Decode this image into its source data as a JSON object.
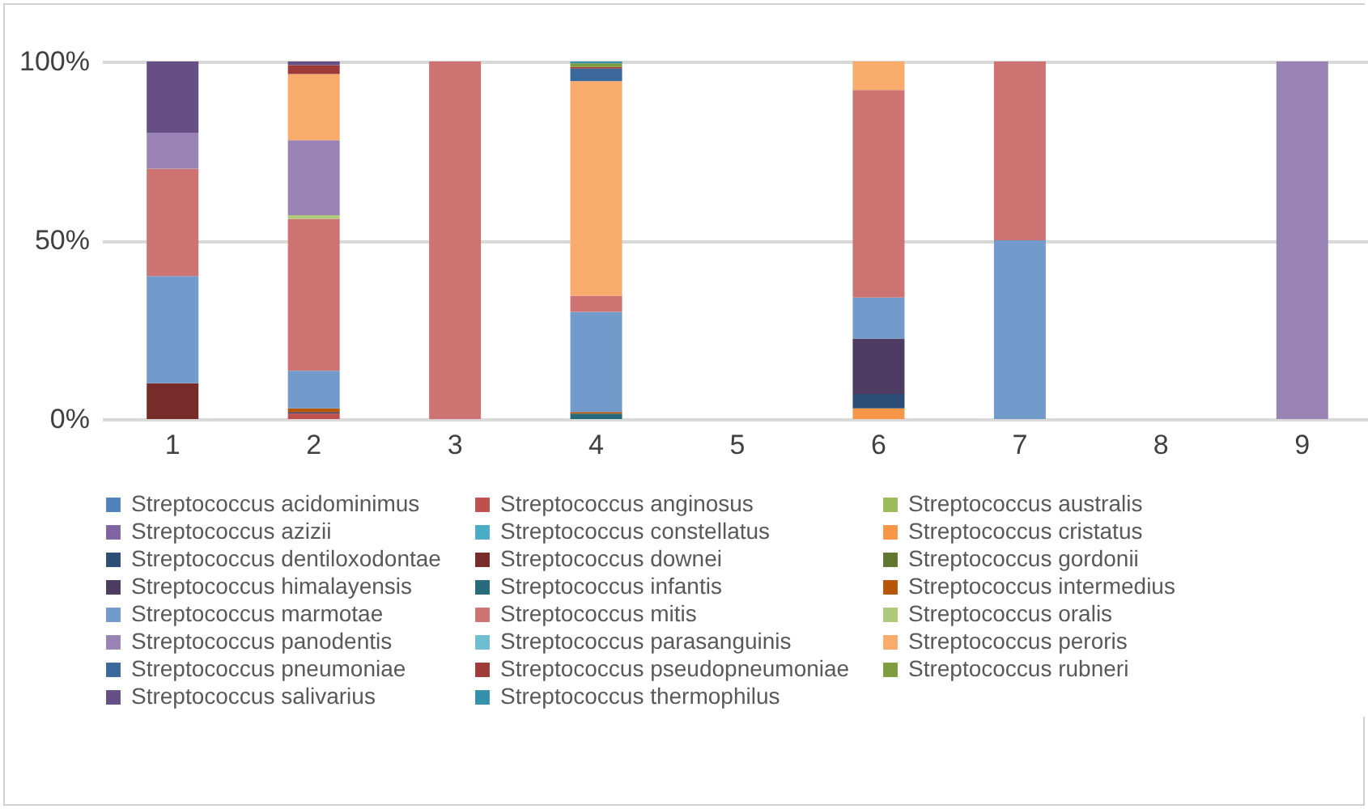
{
  "chart_data": {
    "type": "bar",
    "stacked": true,
    "categories": [
      "1",
      "2",
      "3",
      "4",
      "5",
      "6",
      "7",
      "8",
      "9"
    ],
    "ylim": [
      0,
      100
    ],
    "yticks": [
      {
        "value": 0,
        "label": "0%"
      },
      {
        "value": 50,
        "label": "50%"
      },
      {
        "value": 100,
        "label": "100%"
      }
    ],
    "grid": "y",
    "legend": "bottom",
    "series": [
      {
        "name": "Streptococcus acidominimus",
        "color": "#4f81bd",
        "values": [
          null,
          null,
          null,
          null,
          null,
          null,
          null,
          null,
          null
        ]
      },
      {
        "name": "Streptococcus anginosus",
        "color": "#c0504d",
        "values": [
          null,
          1.5,
          null,
          null,
          null,
          null,
          null,
          null,
          null
        ]
      },
      {
        "name": "Streptococcus australis",
        "color": "#9bbb59",
        "values": [
          null,
          null,
          null,
          null,
          null,
          null,
          null,
          null,
          null
        ]
      },
      {
        "name": "Streptococcus azizii",
        "color": "#8064a2",
        "values": [
          null,
          null,
          null,
          null,
          null,
          null,
          null,
          null,
          null
        ]
      },
      {
        "name": "Streptococcus constellatus",
        "color": "#4bacc6",
        "values": [
          null,
          null,
          null,
          null,
          null,
          null,
          null,
          null,
          null
        ]
      },
      {
        "name": "Streptococcus cristatus",
        "color": "#f79646",
        "values": [
          null,
          null,
          null,
          null,
          null,
          3,
          null,
          null,
          null
        ]
      },
      {
        "name": "Streptococcus dentiloxodontae",
        "color": "#2c4d75",
        "values": [
          null,
          null,
          null,
          null,
          null,
          4,
          null,
          null,
          null
        ]
      },
      {
        "name": "Streptococcus downei",
        "color": "#772c2a",
        "values": [
          10,
          null,
          null,
          null,
          null,
          null,
          null,
          null,
          null
        ]
      },
      {
        "name": "Streptococcus gordonii",
        "color": "#5f7530",
        "values": [
          null,
          null,
          null,
          null,
          null,
          null,
          null,
          null,
          null
        ]
      },
      {
        "name": "Streptococcus himalayensis",
        "color": "#4d3b62",
        "values": [
          null,
          0.5,
          null,
          null,
          null,
          15.5,
          null,
          null,
          null
        ]
      },
      {
        "name": "Streptococcus infantis",
        "color": "#276a7c",
        "values": [
          null,
          null,
          null,
          1.5,
          null,
          null,
          null,
          null,
          null
        ]
      },
      {
        "name": "Streptococcus intermedius",
        "color": "#b65708",
        "values": [
          null,
          1,
          null,
          0.5,
          null,
          null,
          null,
          null,
          null
        ]
      },
      {
        "name": "Streptococcus marmotae",
        "color": "#729aca",
        "values": [
          30,
          10.5,
          null,
          28,
          null,
          11.5,
          50,
          null,
          null
        ]
      },
      {
        "name": "Streptococcus mitis",
        "color": "#cd7371",
        "values": [
          30,
          42.5,
          100,
          4.5,
          null,
          58,
          50,
          null,
          null
        ]
      },
      {
        "name": "Streptococcus oralis",
        "color": "#afc97a",
        "values": [
          null,
          1,
          null,
          null,
          null,
          null,
          null,
          null,
          null
        ]
      },
      {
        "name": "Streptococcus panodentis",
        "color": "#9983b5",
        "values": [
          10,
          21,
          null,
          null,
          null,
          null,
          null,
          null,
          100
        ]
      },
      {
        "name": "Streptococcus parasanguinis",
        "color": "#6fbdd1",
        "values": [
          null,
          null,
          null,
          null,
          null,
          null,
          null,
          null,
          null
        ]
      },
      {
        "name": "Streptococcus peroris",
        "color": "#f9ab6b",
        "values": [
          null,
          18.5,
          null,
          60,
          null,
          8,
          null,
          null,
          null
        ]
      },
      {
        "name": "Streptococcus pneumoniae",
        "color": "#3a679c",
        "values": [
          null,
          null,
          null,
          3.5,
          null,
          null,
          null,
          null,
          null
        ]
      },
      {
        "name": "Streptococcus pseudopneumoniae",
        "color": "#9e3b38",
        "values": [
          null,
          2.5,
          null,
          0.5,
          null,
          null,
          null,
          null,
          null
        ]
      },
      {
        "name": "Streptococcus rubneri",
        "color": "#7e9c40",
        "values": [
          null,
          null,
          null,
          1,
          null,
          null,
          null,
          null,
          null
        ]
      },
      {
        "name": "Streptococcus salivarius",
        "color": "#664f85",
        "values": [
          20,
          1,
          null,
          null,
          null,
          null,
          null,
          null,
          null
        ]
      },
      {
        "name": "Streptococcus thermophilus",
        "color": "#3491a9",
        "values": [
          null,
          null,
          null,
          0.5,
          null,
          null,
          null,
          null,
          null
        ]
      }
    ]
  }
}
